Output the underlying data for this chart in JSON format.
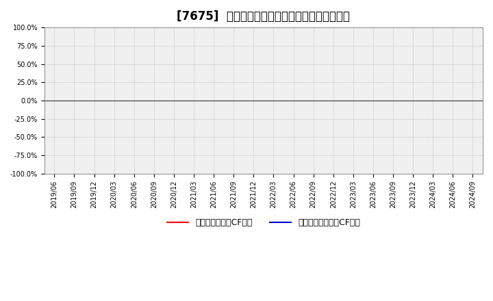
{
  "title": "[7675]  有利子負債キャッシュフロー比率の推移",
  "title_fontsize": 12,
  "background_color": "#ffffff",
  "plot_bg_color": "#f0f0f0",
  "ylim": [
    -1.0,
    1.0
  ],
  "yticks": [
    -1.0,
    -0.75,
    -0.5,
    -0.25,
    0.0,
    0.25,
    0.5,
    0.75,
    1.0
  ],
  "ytick_labels": [
    "-100.0%",
    "-75.0%",
    "-50.0%",
    "-25.0%",
    "0.0%",
    "25.0%",
    "50.0%",
    "75.0%",
    "100.0%"
  ],
  "xtick_labels": [
    "2019/06",
    "2019/09",
    "2019/12",
    "2020/03",
    "2020/06",
    "2020/09",
    "2020/12",
    "2021/03",
    "2021/06",
    "2021/09",
    "2021/12",
    "2022/03",
    "2022/06",
    "2022/09",
    "2022/12",
    "2023/03",
    "2023/06",
    "2023/09",
    "2023/12",
    "2024/03",
    "2024/06",
    "2024/09"
  ],
  "legend": [
    {
      "label": "有利子負債営業CF比率",
      "color": "#ff0000"
    },
    {
      "label": "有利子負債フリーCF比率",
      "color": "#0000cc"
    }
  ],
  "grid_color": "#aaaaaa",
  "zero_line_color": "#333333",
  "tick_fontsize": 7,
  "legend_fontsize": 9
}
